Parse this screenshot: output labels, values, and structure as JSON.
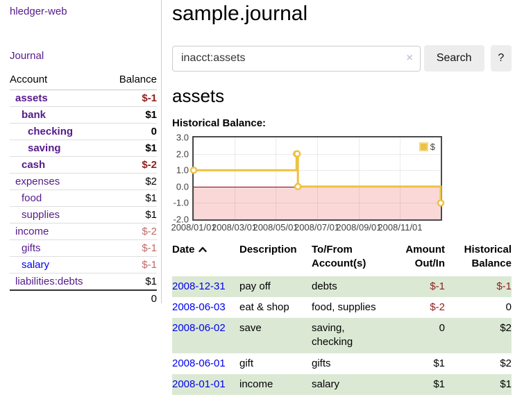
{
  "app": {
    "brand": "hledger-web"
  },
  "sidebar": {
    "journal_label": "Journal",
    "accounts_table": {
      "account_header": "Account",
      "balance_header": "Balance",
      "rows": [
        {
          "name": "assets",
          "level": 1,
          "bold": true,
          "balance": "$-1"
        },
        {
          "name": "bank",
          "level": 2,
          "bold": true,
          "balance": "$1"
        },
        {
          "name": "checking",
          "level": 3,
          "bold": true,
          "balance": "0"
        },
        {
          "name": "saving",
          "level": 3,
          "bold": true,
          "balance": "$1"
        },
        {
          "name": "cash",
          "level": 2,
          "bold": true,
          "balance": "$-2"
        },
        {
          "name": "expenses",
          "level": 1,
          "bold": false,
          "balance": "$2"
        },
        {
          "name": "food",
          "level": 2,
          "bold": false,
          "balance": "$1"
        },
        {
          "name": "supplies",
          "level": 2,
          "bold": false,
          "balance": "$1"
        },
        {
          "name": "income",
          "level": 1,
          "bold": false,
          "balance": "$-2"
        },
        {
          "name": "gifts",
          "level": 2,
          "bold": false,
          "balance": "$-1"
        },
        {
          "name": "salary",
          "level": 2,
          "bold": false,
          "balance": "$-1",
          "unvisited": true
        },
        {
          "name": "liabilities:debts",
          "level": 1,
          "bold": false,
          "balance": "$1"
        }
      ],
      "total": "0"
    }
  },
  "main": {
    "title": "sample.journal",
    "search": {
      "value": "inacct:assets",
      "clear_icon": "×",
      "search_button": "Search",
      "help_button": "?"
    },
    "account_heading": "assets",
    "chart_heading": "Historical Balance:"
  },
  "chart_data": {
    "type": "line",
    "title": "Historical Balance",
    "step": true,
    "x_range": [
      "2008/01/01",
      "2008/12/31"
    ],
    "y_range": [
      -2,
      3
    ],
    "x_ticks": [
      "2008/01/01",
      "2008/03/01",
      "2008/05/01",
      "2008/07/01",
      "2008/09/01",
      "2008/11/01"
    ],
    "y_ticks": [
      "3.0",
      "2.0",
      "1.0",
      "0.0",
      "-1.0",
      "-2.0"
    ],
    "series": [
      {
        "name": "$",
        "color": "#edc240",
        "points": [
          [
            "2008/01/01",
            1
          ],
          [
            "2008/06/01",
            2
          ],
          [
            "2008/06/02",
            2
          ],
          [
            "2008/06/03",
            0
          ],
          [
            "2008/12/31",
            -1
          ]
        ]
      }
    ],
    "legend": {
      "label": "$",
      "position": "top-right"
    },
    "negative_region_color": "#fad8d8",
    "zero_line_color": "#8b0000",
    "grid": true
  },
  "register": {
    "headers": {
      "date": "Date",
      "description": "Description",
      "accounts": "To/From Account(s)",
      "amount": "Amount Out/In",
      "balance": "Historical Balance"
    },
    "sort": {
      "column": "date",
      "direction": "ascending",
      "icon": "chevron-up"
    },
    "rows": [
      {
        "date": "2008-12-31",
        "description": "pay off",
        "accounts": "debts",
        "amount": "$-1",
        "balance": "$-1"
      },
      {
        "date": "2008-06-03",
        "description": "eat & shop",
        "accounts": "food, supplies",
        "amount": "$-2",
        "balance": "0"
      },
      {
        "date": "2008-06-02",
        "description": "save",
        "accounts": "saving, checking",
        "amount": "0",
        "balance": "$2"
      },
      {
        "date": "2008-06-01",
        "description": "gift",
        "accounts": "gifts",
        "amount": "$1",
        "balance": "$2"
      },
      {
        "date": "2008-01-01",
        "description": "income",
        "accounts": "salary",
        "amount": "$1",
        "balance": "$1"
      }
    ]
  },
  "colors": {
    "link_visited_purple": "#551a8b",
    "link_blue": "#0000ee",
    "negative_strong_red": "#8f1d1d",
    "negative_soft_red": "#c26868",
    "row_stripe_green": "#dbe9d4",
    "chart_series_gold": "#edc240",
    "chart_negative_fill_pink": "#fad8d8",
    "chart_zero_line_red": "#8b0000"
  }
}
